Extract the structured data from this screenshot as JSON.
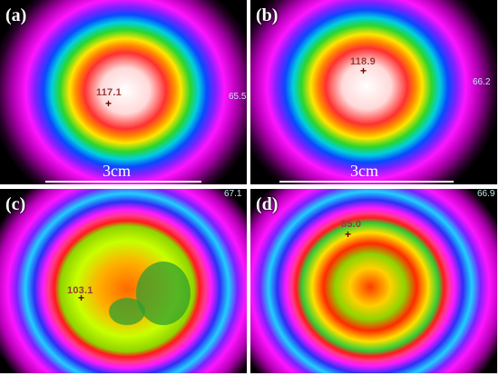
{
  "panels": [
    {
      "label": "(a)",
      "hotspot": "117.1",
      "edge_reading": "65.5",
      "scale": "3cm"
    },
    {
      "label": "(b)",
      "hotspot": "118.9",
      "edge_reading": "66.2",
      "scale": "3cm"
    },
    {
      "label": "(c)",
      "hotspot": "103.1",
      "edge_reading": "67.1"
    },
    {
      "label": "(d)",
      "hotspot": "85.0",
      "edge_reading": "66.9"
    }
  ],
  "icons": {
    "crosshair": "crosshair-marker"
  }
}
